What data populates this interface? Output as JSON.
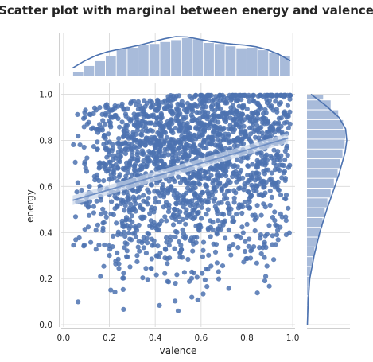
{
  "chart_data": {
    "type": "scatter",
    "title": "Scatter plot with marginal between energy and valence",
    "xlabel": "valence",
    "ylabel": "energy",
    "xlim": [
      -0.01,
      1.01
    ],
    "ylim": [
      -0.01,
      1.05
    ],
    "xticks": [
      "0.0",
      "0.2",
      "0.4",
      "0.6",
      "0.8",
      "1.0"
    ],
    "yticks": [
      "0.0",
      "0.2",
      "0.4",
      "0.6",
      "0.8",
      "1.0"
    ],
    "grid": true,
    "marker_color": "#4c72b0",
    "histogram_color": "#a8bbda",
    "regression_line": {
      "x": [
        0.04,
        0.98
      ],
      "y": [
        0.54,
        0.81
      ]
    },
    "n_points": 2000,
    "marginal_x_histogram": {
      "bin_edges": [
        0.04,
        0.0875,
        0.135,
        0.1825,
        0.23,
        0.2775,
        0.325,
        0.3725,
        0.42,
        0.4675,
        0.515,
        0.5625,
        0.61,
        0.6575,
        0.705,
        0.7525,
        0.8,
        0.8475,
        0.895,
        0.9425,
        0.99
      ],
      "counts": [
        8,
        20,
        30,
        40,
        55,
        58,
        63,
        66,
        70,
        74,
        78,
        76,
        68,
        66,
        61,
        57,
        58,
        53,
        48,
        40
      ]
    },
    "marginal_y_histogram": {
      "bin_edges": [
        0.04,
        0.0825,
        0.125,
        0.1675,
        0.21,
        0.2525,
        0.295,
        0.3375,
        0.38,
        0.4225,
        0.465,
        0.5075,
        0.55,
        0.5925,
        0.635,
        0.6775,
        0.72,
        0.7625,
        0.805,
        0.8475,
        0.89,
        0.9325,
        0.975,
        1.0
      ],
      "counts": [
        1,
        2,
        3,
        5,
        7,
        10,
        14,
        19,
        24,
        29,
        33,
        38,
        44,
        50,
        57,
        62,
        66,
        70,
        71,
        67,
        58,
        44,
        30
      ]
    },
    "marginal_x_kde": {
      "x": [
        0.04,
        0.09,
        0.14,
        0.19,
        0.24,
        0.29,
        0.34,
        0.39,
        0.44,
        0.49,
        0.54,
        0.59,
        0.64,
        0.69,
        0.74,
        0.79,
        0.84,
        0.89,
        0.94,
        0.99
      ],
      "density": [
        0.18,
        0.34,
        0.47,
        0.56,
        0.62,
        0.67,
        0.73,
        0.8,
        0.87,
        0.92,
        0.91,
        0.86,
        0.81,
        0.77,
        0.74,
        0.72,
        0.68,
        0.61,
        0.5,
        0.35
      ]
    },
    "marginal_y_kde": {
      "y": [
        0.0,
        0.1,
        0.2,
        0.3,
        0.4,
        0.5,
        0.6,
        0.65,
        0.7,
        0.75,
        0.8,
        0.85,
        0.9,
        0.95,
        1.0
      ],
      "density": [
        0.01,
        0.03,
        0.07,
        0.18,
        0.32,
        0.5,
        0.7,
        0.8,
        0.88,
        0.96,
        1.0,
        0.97,
        0.8,
        0.48,
        0.1
      ]
    }
  }
}
